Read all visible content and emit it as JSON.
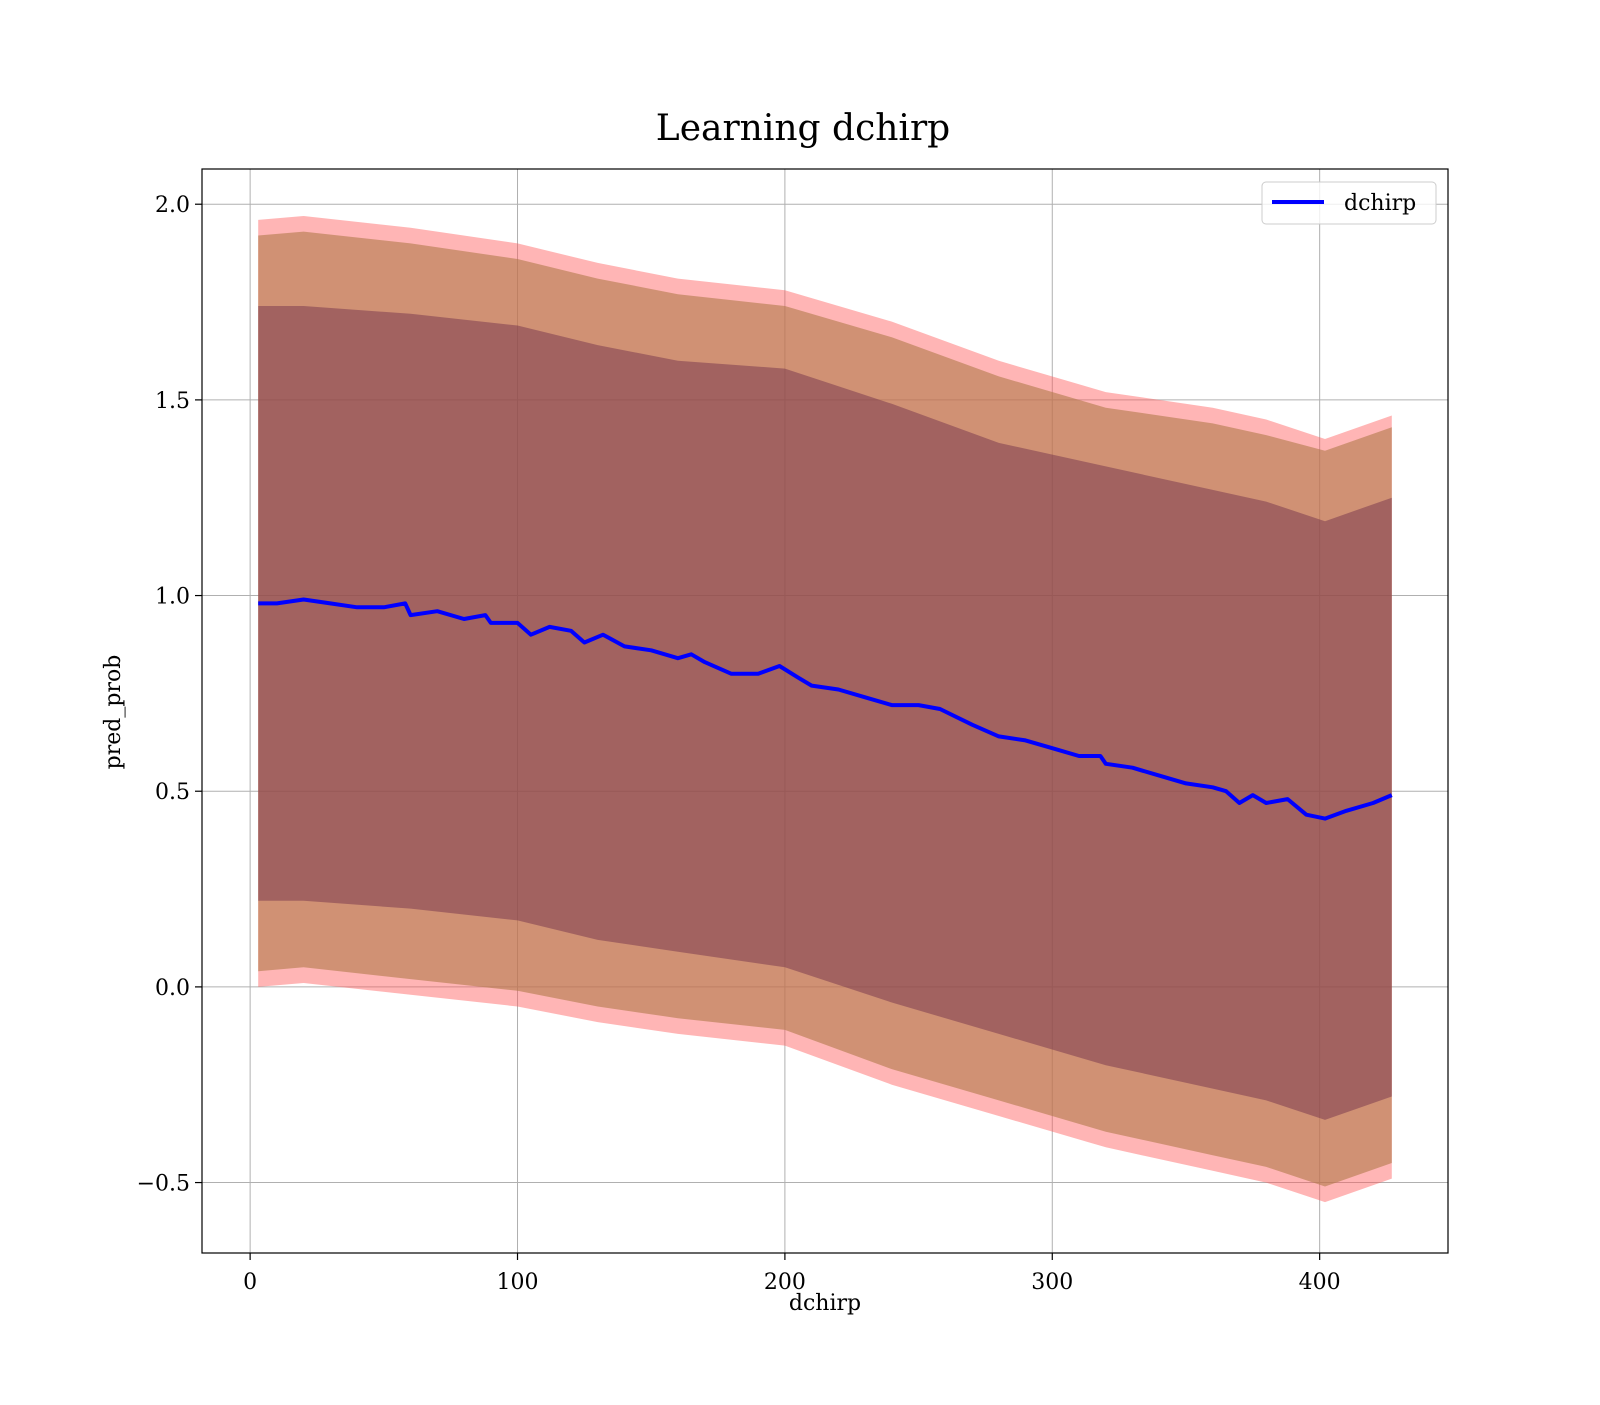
{
  "chart_data": {
    "type": "line",
    "title": "Learning dchirp",
    "xlabel": "dchirp",
    "ylabel": "pred_prob",
    "xlim": [
      -18,
      448
    ],
    "ylim": [
      -0.68,
      2.09
    ],
    "xticks": [
      0,
      100,
      200,
      300,
      400
    ],
    "xtick_labels": [
      "0",
      "100",
      "200",
      "300",
      "400"
    ],
    "yticks": [
      -0.5,
      0.0,
      0.5,
      1.0,
      1.5,
      2.0
    ],
    "ytick_labels": [
      "−0.5",
      "0.0",
      "0.5",
      "1.0",
      "1.5",
      "2.0"
    ],
    "grid": true,
    "legend": {
      "position": "top-right",
      "entries": [
        {
          "label": "dchirp",
          "color": "#0000ff"
        }
      ]
    },
    "colors": {
      "line": "#0000ff",
      "band_outer": "#ff5a5a",
      "band_middle": "#b07a4a",
      "band_inner": "#6a2a4a"
    },
    "series": [
      {
        "name": "dchirp",
        "x": [
          3,
          10,
          20,
          30,
          40,
          50,
          58,
          60,
          70,
          80,
          88,
          90,
          100,
          105,
          112,
          120,
          125,
          132,
          140,
          150,
          160,
          165,
          170,
          180,
          190,
          198,
          205,
          210,
          220,
          230,
          240,
          250,
          258,
          270,
          280,
          290,
          300,
          310,
          318,
          320,
          330,
          340,
          350,
          360,
          365,
          370,
          375,
          380,
          388,
          395,
          402,
          410,
          420,
          427
        ],
        "y": [
          0.98,
          0.98,
          0.99,
          0.98,
          0.97,
          0.97,
          0.98,
          0.95,
          0.96,
          0.94,
          0.95,
          0.93,
          0.93,
          0.9,
          0.92,
          0.91,
          0.88,
          0.9,
          0.87,
          0.86,
          0.84,
          0.85,
          0.83,
          0.8,
          0.8,
          0.82,
          0.79,
          0.77,
          0.76,
          0.74,
          0.72,
          0.72,
          0.71,
          0.67,
          0.64,
          0.63,
          0.61,
          0.59,
          0.59,
          0.57,
          0.56,
          0.54,
          0.52,
          0.51,
          0.5,
          0.47,
          0.49,
          0.47,
          0.48,
          0.44,
          0.43,
          0.45,
          0.47,
          0.49
        ]
      }
    ],
    "bands": [
      {
        "x": [
          3,
          20,
          60,
          100,
          130,
          160,
          200,
          240,
          280,
          320,
          360,
          380,
          402,
          427
        ],
        "upper": [
          1.96,
          1.97,
          1.94,
          1.9,
          1.85,
          1.81,
          1.78,
          1.7,
          1.6,
          1.52,
          1.48,
          1.45,
          1.4,
          1.46
        ],
        "lower": [
          0.0,
          0.01,
          -0.02,
          -0.05,
          -0.09,
          -0.12,
          -0.15,
          -0.25,
          -0.33,
          -0.41,
          -0.47,
          -0.5,
          -0.55,
          -0.49
        ]
      },
      {
        "x": [
          3,
          20,
          60,
          100,
          130,
          160,
          200,
          240,
          280,
          320,
          360,
          380,
          402,
          427
        ],
        "upper": [
          1.92,
          1.93,
          1.9,
          1.86,
          1.81,
          1.77,
          1.74,
          1.66,
          1.56,
          1.48,
          1.44,
          1.41,
          1.37,
          1.43
        ],
        "lower": [
          0.04,
          0.05,
          0.02,
          -0.01,
          -0.05,
          -0.08,
          -0.11,
          -0.21,
          -0.29,
          -0.37,
          -0.43,
          -0.46,
          -0.51,
          -0.45
        ]
      },
      {
        "x": [
          3,
          20,
          60,
          100,
          130,
          160,
          200,
          240,
          280,
          320,
          360,
          380,
          402,
          427
        ],
        "upper": [
          1.74,
          1.74,
          1.72,
          1.69,
          1.64,
          1.6,
          1.58,
          1.49,
          1.39,
          1.33,
          1.27,
          1.24,
          1.19,
          1.25
        ],
        "lower": [
          0.22,
          0.22,
          0.2,
          0.17,
          0.12,
          0.09,
          0.05,
          -0.04,
          -0.12,
          -0.2,
          -0.26,
          -0.29,
          -0.34,
          -0.28
        ]
      }
    ]
  }
}
